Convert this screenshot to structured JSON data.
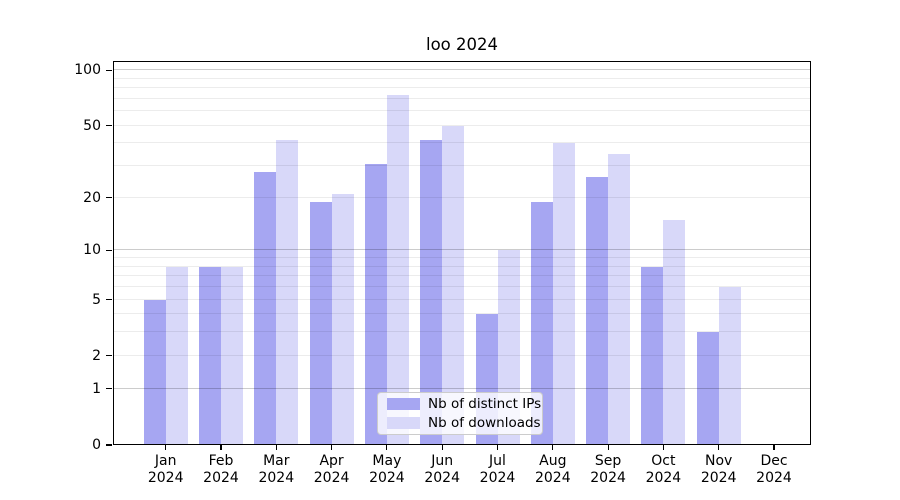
{
  "title": "loo 2024",
  "chart_data": {
    "type": "bar",
    "title": "loo 2024",
    "categories": [
      "Jan 2024",
      "Feb 2024",
      "Mar 2024",
      "Apr 2024",
      "May 2024",
      "Jun 2024",
      "Jul 2024",
      "Aug 2024",
      "Sep 2024",
      "Oct 2024",
      "Nov 2024",
      "Dec 2024"
    ],
    "series": [
      {
        "name": "Nb of distinct IPs",
        "color": "#a6a6f2",
        "values": [
          5,
          8,
          28,
          19,
          31,
          42,
          4,
          19,
          26,
          8,
          3,
          0
        ]
      },
      {
        "name": "Nb of downloads",
        "color": "#d8d8f9",
        "values": [
          8,
          8,
          42,
          21,
          73,
          50,
          10,
          40,
          35,
          15,
          6,
          0
        ]
      }
    ],
    "yscale": "log1p",
    "yticks": [
      0,
      1,
      2,
      5,
      10,
      20,
      50,
      100
    ],
    "ylim": [
      0,
      112
    ],
    "xlabel": "",
    "ylabel": "",
    "grid": "horizontal major+minor log gridlines, drawn above bars",
    "legend_position": "bottom-center inside plot"
  },
  "colors": {
    "background": "#ffffff",
    "axis": "#000000",
    "grid_major": "#cccccc",
    "grid_minor": "#ececec",
    "legend_border": "#cccccc",
    "legend_background": "rgba(255,255,255,0.8)"
  }
}
